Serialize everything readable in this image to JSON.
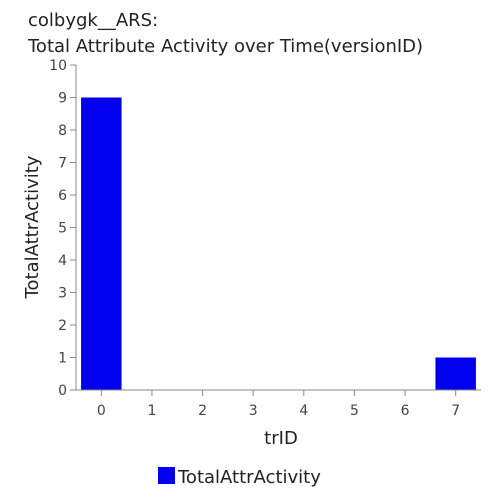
{
  "chart_data": {
    "type": "bar",
    "title": [
      "colbygk__ARS:",
      "Total Attribute Activity over Time(versionID)"
    ],
    "xlabel": "trID",
    "ylabel": "TotalAttrActivity",
    "categories": [
      "0",
      "1",
      "2",
      "3",
      "4",
      "5",
      "6",
      "7"
    ],
    "series": [
      {
        "name": "TotalAttrActivity",
        "values": [
          9,
          0,
          0,
          0,
          0,
          0,
          0,
          1
        ]
      }
    ],
    "y_ticks": [
      "0",
      "1",
      "2",
      "3",
      "4",
      "5",
      "6",
      "7",
      "8",
      "9",
      "10"
    ],
    "ylim": [
      0,
      10
    ],
    "grid": false,
    "legend_position": "bottom",
    "bar_color": "#0000ee"
  }
}
